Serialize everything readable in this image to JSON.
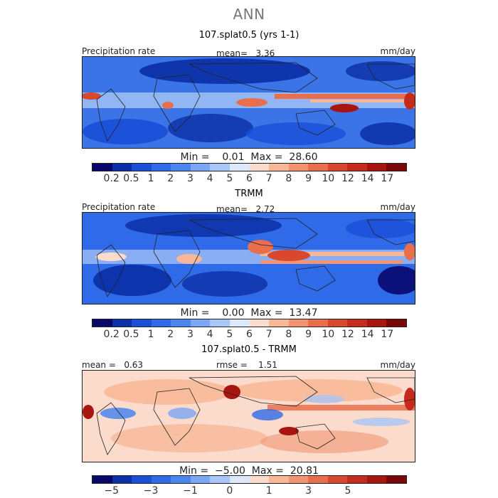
{
  "figure": {
    "title": "ANN"
  },
  "colors": {
    "abs_scale": [
      "#08086b",
      "#0b2fa6",
      "#1a4fd8",
      "#2f6ae8",
      "#4a86f0",
      "#7aa6f5",
      "#a9c6f8",
      "#dde8fb",
      "#fbdccc",
      "#f8b898",
      "#f29470",
      "#e86e4c",
      "#d9472d",
      "#c52a1b",
      "#a8140e",
      "#7a0707"
    ],
    "diff_scale": [
      "#08086b",
      "#0b2fa6",
      "#1a4fd8",
      "#2f6ae8",
      "#4a86f0",
      "#7aa6f5",
      "#a9c6f8",
      "#dde8fb",
      "#fbdccc",
      "#f8b898",
      "#f29470",
      "#e86e4c",
      "#d9472d",
      "#c52a1b",
      "#a8140e",
      "#7a0707"
    ]
  },
  "panels": [
    {
      "title": "107.splat0.5 (yrs 1-1)",
      "left_label": "Precipitation rate",
      "center_label": "mean=   3.36",
      "right_label": "mm/day",
      "min_max": "Min =    0.01  Max =  28.60",
      "ticks": [
        "0.2",
        "0.5",
        "1",
        "2",
        "3",
        "4",
        "5",
        "6",
        "7",
        "8",
        "9",
        "10",
        "12",
        "14",
        "17"
      ]
    },
    {
      "title": "TRMM",
      "left_label": "Precipitation rate",
      "center_label": "mean=   2.72",
      "right_label": "mm/day",
      "min_max": "Min =    0.00  Max =  13.47",
      "ticks": [
        "0.2",
        "0.5",
        "1",
        "2",
        "3",
        "4",
        "5",
        "6",
        "7",
        "8",
        "9",
        "10",
        "12",
        "14",
        "17"
      ]
    },
    {
      "title": "107.splat0.5 - TRMM",
      "left_label": "mean =   0.63",
      "center_label": "rmse =    1.51",
      "right_label": "mm/day",
      "min_max": "Min =  −5.00  Max =  20.81",
      "ticks": [
        "−5",
        "",
        "−3",
        "",
        "−1",
        "",
        "0",
        "",
        "1",
        "",
        "3",
        "",
        "5",
        ""
      ]
    }
  ]
}
